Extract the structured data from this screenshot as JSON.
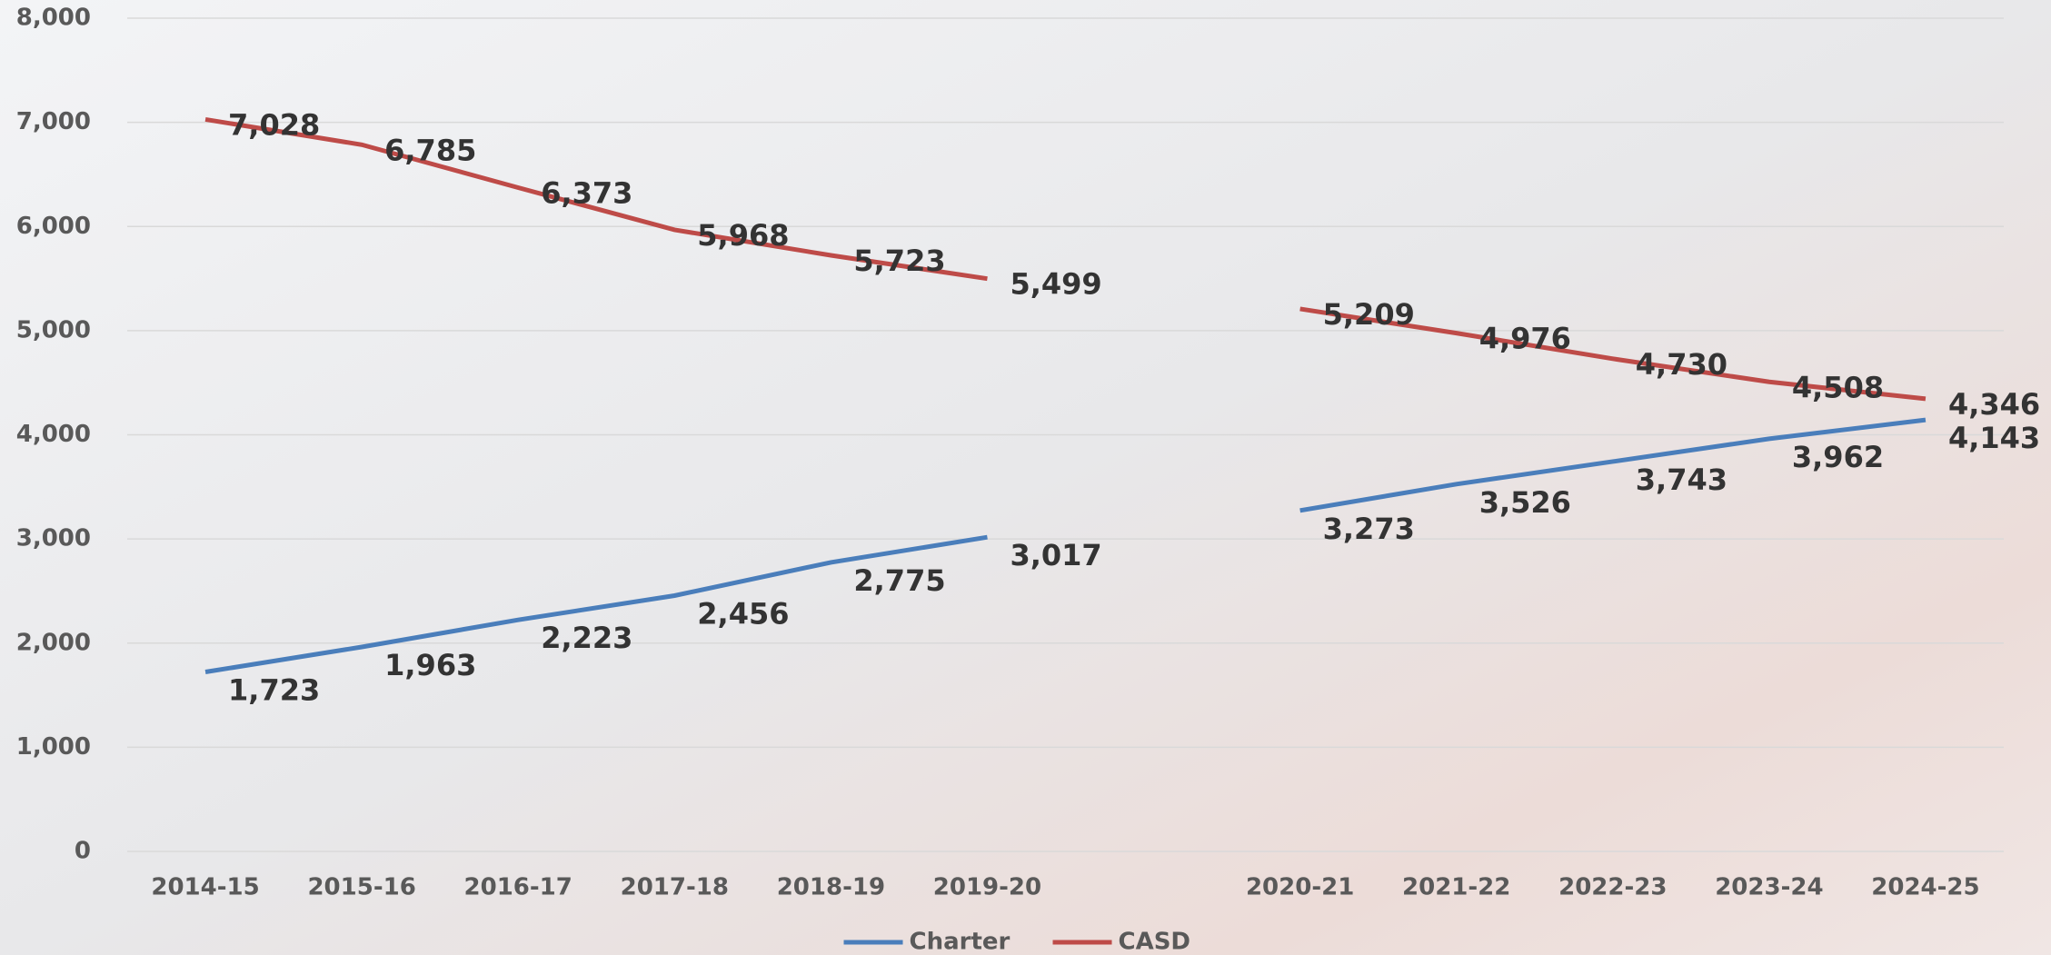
{
  "chart_data": {
    "type": "line",
    "categories": [
      "2014-15",
      "2015-16",
      "2016-17",
      "2017-18",
      "2018-19",
      "2019-20",
      null,
      "2020-21",
      "2021-22",
      "2022-23",
      "2023-24",
      "2024-25"
    ],
    "series": [
      {
        "name": "Charter",
        "color": "#4a7ebb",
        "values": [
          1723,
          1963,
          2223,
          2456,
          2775,
          3017,
          null,
          3273,
          3526,
          3743,
          3962,
          4143
        ],
        "value_labels": [
          "1,723",
          "1,963",
          "2,223",
          "2,456",
          "2,775",
          "3,017",
          null,
          "3,273",
          "3,526",
          "3,743",
          "3,962",
          "4,143"
        ]
      },
      {
        "name": "CASD",
        "color": "#be4b48",
        "values": [
          7028,
          6785,
          6373,
          5968,
          5723,
          5499,
          null,
          5209,
          4976,
          4730,
          4508,
          4346
        ],
        "value_labels": [
          "7,028",
          "6,785",
          "6,373",
          "5,968",
          "5,723",
          "5,499",
          null,
          "5,209",
          "4,976",
          "4,730",
          "4,508",
          "4,346"
        ]
      }
    ],
    "ylim": [
      0,
      8000
    ],
    "yticks": [
      0,
      {
        "value": 1000,
        "label": "1,000"
      },
      {
        "value": 2000,
        "label": "2,000"
      },
      {
        "value": 3000,
        "label": "3,000"
      },
      {
        "value": 4000,
        "label": "4,000"
      },
      {
        "value": 5000,
        "label": "5,000"
      },
      {
        "value": 6000,
        "label": "6,000"
      },
      {
        "value": 7000,
        "label": "7,000"
      },
      {
        "value": 8000,
        "label": "8,000"
      }
    ],
    "grid": true,
    "legend": "bottom"
  }
}
